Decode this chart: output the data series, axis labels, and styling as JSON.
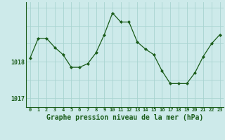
{
  "x": [
    0,
    1,
    2,
    3,
    4,
    5,
    6,
    7,
    8,
    9,
    10,
    11,
    12,
    13,
    14,
    15,
    16,
    17,
    18,
    19,
    20,
    21,
    22,
    23
  ],
  "y": [
    1018.1,
    1018.65,
    1018.65,
    1018.4,
    1018.2,
    1017.85,
    1017.85,
    1017.95,
    1018.25,
    1018.75,
    1019.35,
    1019.1,
    1019.1,
    1018.55,
    1018.35,
    1018.2,
    1017.75,
    1017.4,
    1017.4,
    1017.4,
    1017.7,
    1018.15,
    1018.5,
    1018.75
  ],
  "line_color": "#1a5c1a",
  "marker": "D",
  "marker_size": 2.0,
  "bg_color": "#cdeaea",
  "grid_color": "#a8d4d0",
  "axis_color": "#1a5c1a",
  "xlabel": "Graphe pression niveau de la mer (hPa)",
  "xlabel_fontsize": 7.0,
  "ytick_labels": [
    "1017",
    "1018"
  ],
  "ytick_values": [
    1017.0,
    1018.0
  ],
  "ylim": [
    1016.75,
    1019.65
  ],
  "xlim": [
    -0.5,
    23.5
  ],
  "xtick_labels": [
    "0",
    "1",
    "2",
    "3",
    "4",
    "5",
    "6",
    "7",
    "8",
    "9",
    "10",
    "11",
    "12",
    "13",
    "14",
    "15",
    "16",
    "17",
    "18",
    "19",
    "20",
    "21",
    "22",
    "23"
  ],
  "tick_color": "#1a5c1a",
  "spine_color": "#1a5c1a"
}
